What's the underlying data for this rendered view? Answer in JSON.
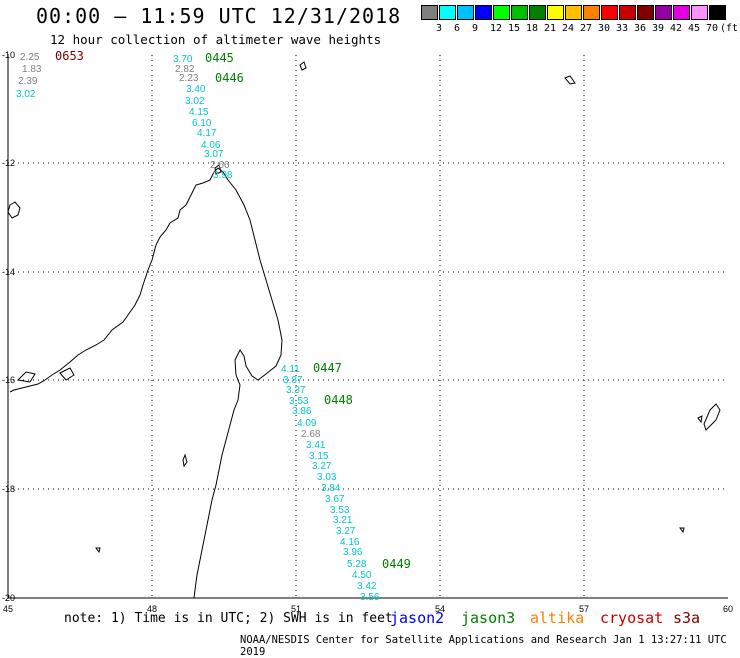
{
  "header": {
    "title": "00:00 – 11:59 UTC 12/31/2018",
    "subtitle": "12 hour collection of altimeter wave heights"
  },
  "scale": {
    "labels": [
      "3",
      "6",
      "9",
      "12",
      "15",
      "18",
      "21",
      "24",
      "27",
      "30",
      "33",
      "36",
      "39",
      "42",
      "45",
      "70",
      "(ft)"
    ],
    "colors": [
      "#7f7f7f",
      "#00ffff",
      "#00bfff",
      "#0000ff",
      "#00ff00",
      "#00bf00",
      "#008000",
      "#ffff00",
      "#ffbf00",
      "#ff8000",
      "#ff0000",
      "#c80000",
      "#800000",
      "#9400a0",
      "#e000e0",
      "#ff90ff",
      "#000000"
    ]
  },
  "axes": {
    "lat_labels": [
      "-10",
      "-12",
      "-14",
      "-16",
      "-18",
      "-20"
    ],
    "lon_labels": [
      "45",
      "48",
      "51",
      "54",
      "57",
      "60"
    ]
  },
  "tracks": [
    {
      "time": "0653",
      "time_color": "#800000",
      "labels": [
        {
          "v": "2.25",
          "c": "#7f7f7f"
        },
        {
          "v": "1.83",
          "c": "#7f7f7f"
        },
        {
          "v": "2.39",
          "c": "#7f7f7f"
        },
        {
          "v": "3.02",
          "c": "#00c8c8"
        }
      ]
    },
    {
      "time": "0445",
      "time_color": "#008000",
      "labels": [
        {
          "v": "3.70",
          "c": "#00c8c8"
        },
        {
          "v": "2.82",
          "c": "#7f7f7f"
        }
      ]
    },
    {
      "time": "0446",
      "time_color": "#008000",
      "labels": [
        {
          "v": "2.23",
          "c": "#7f7f7f"
        },
        {
          "v": "3.40",
          "c": "#00c8c8"
        },
        {
          "v": "3.02",
          "c": "#00c8c8"
        },
        {
          "v": "4.15",
          "c": "#00c8c8"
        },
        {
          "v": "6.10",
          "c": "#00c8c8"
        },
        {
          "v": "4.17",
          "c": "#00c8c8"
        },
        {
          "v": "4.06",
          "c": "#00c8c8"
        },
        {
          "v": "3.07",
          "c": "#00c8c8"
        },
        {
          "v": "2.66",
          "c": "#7f7f7f"
        },
        {
          "v": "3.98",
          "c": "#00c8c8"
        }
      ]
    },
    {
      "time": "0447",
      "time_color": "#008000",
      "labels": [
        {
          "v": "4.11",
          "c": "#00c8c8"
        },
        {
          "v": "3.87",
          "c": "#00c8c8"
        },
        {
          "v": "3.37",
          "c": "#00c8c8"
        }
      ]
    },
    {
      "time": "0448",
      "time_color": "#008000",
      "labels": [
        {
          "v": "3.53",
          "c": "#00c8c8"
        },
        {
          "v": "3.86",
          "c": "#00c8c8"
        },
        {
          "v": "4.09",
          "c": "#00c8c8"
        },
        {
          "v": "2.68",
          "c": "#7f7f7f"
        },
        {
          "v": "3.41",
          "c": "#00c8c8"
        },
        {
          "v": "3.15",
          "c": "#00c8c8"
        },
        {
          "v": "3.27",
          "c": "#00c8c8"
        },
        {
          "v": "3.03",
          "c": "#00c8c8"
        },
        {
          "v": "3.84",
          "c": "#00c8c8"
        },
        {
          "v": "3.67",
          "c": "#00c8c8"
        },
        {
          "v": "3.53",
          "c": "#00c8c8"
        },
        {
          "v": "3.21",
          "c": "#00c8c8"
        },
        {
          "v": "3.27",
          "c": "#00c8c8"
        },
        {
          "v": "4.16",
          "c": "#00c8c8"
        },
        {
          "v": "3.96",
          "c": "#00c8c8"
        }
      ]
    },
    {
      "time": "0449",
      "time_color": "#008000",
      "labels": [
        {
          "v": "5.28",
          "c": "#00c8c8"
        },
        {
          "v": "4.50",
          "c": "#00c8c8"
        },
        {
          "v": "3.42",
          "c": "#00c8c8"
        },
        {
          "v": "3.56",
          "c": "#00c8c8"
        }
      ]
    }
  ],
  "footer": {
    "note": "note: 1) Time is in UTC; 2) SWH is in feet",
    "satellites": [
      {
        "name": "jason2",
        "color": "#0000ff"
      },
      {
        "name": "jason3",
        "color": "#008000"
      },
      {
        "name": "altika",
        "color": "#ff8000"
      },
      {
        "name": "cryosat",
        "color": "#c80000"
      },
      {
        "name": "s3a",
        "color": "#800000"
      }
    ],
    "credit": "NOAA/NESDIS Center for Satellite Applications and Research   Jan  1 13:27:11 UTC 2019"
  }
}
